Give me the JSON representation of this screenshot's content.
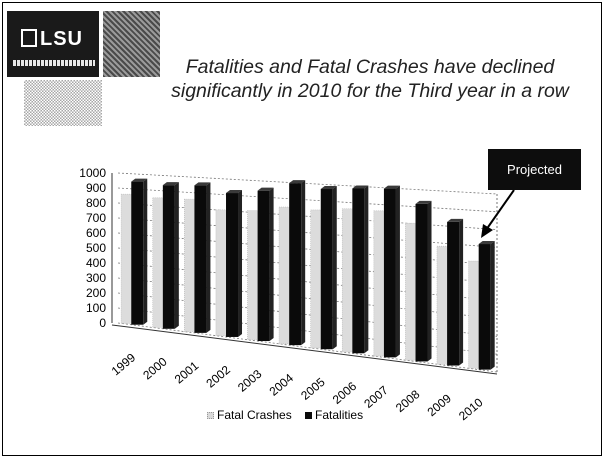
{
  "slide": {
    "logo_text": "LSU",
    "title": "Fatalities and Fatal Crashes have declined significantly in 2010 for the Third year in a row",
    "callout": "Projected"
  },
  "colors": {
    "fatal_crashes": "#dcdcdc",
    "fatalities": "#0a0a0a",
    "callout_bg": "#0d0d0d"
  },
  "chart_data": {
    "type": "bar",
    "categories": [
      "1999",
      "2000",
      "2001",
      "2002",
      "2003",
      "2004",
      "2005",
      "2006",
      "2007",
      "2008",
      "2009",
      "2010"
    ],
    "series": [
      {
        "name": "Fatal Crashes",
        "values": [
          860,
          850,
          855,
          800,
          810,
          845,
          840,
          860,
          860,
          800,
          680,
          610
        ]
      },
      {
        "name": "Fatalities",
        "values": [
          948,
          937,
          948,
          911,
          938,
          996,
          971,
          985,
          995,
          916,
          824,
          711
        ]
      }
    ],
    "yticks": [
      "1000",
      "900",
      "800",
      "700",
      "600",
      "500",
      "400",
      "300",
      "200",
      "100",
      "0"
    ],
    "ylim": [
      0,
      1000
    ],
    "grid": true,
    "legend_position": "bottom",
    "title": "",
    "xlabel": "",
    "ylabel": ""
  }
}
